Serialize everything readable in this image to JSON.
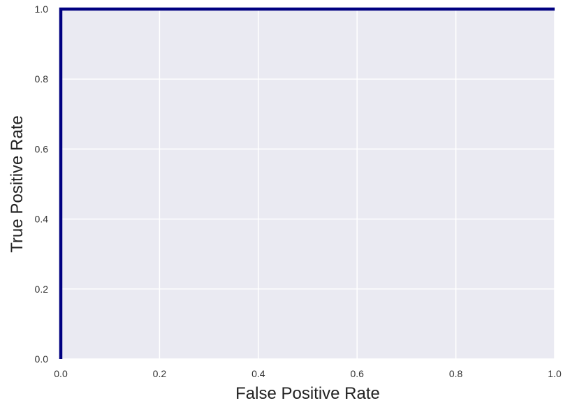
{
  "chart_data": {
    "type": "line",
    "title": "",
    "xlabel": "False Positive Rate",
    "ylabel": "True Positive Rate",
    "xlim": [
      0.0,
      1.0
    ],
    "ylim": [
      0.0,
      1.0
    ],
    "x_ticks": [
      0.0,
      0.2,
      0.4,
      0.6,
      0.8,
      1.0
    ],
    "y_ticks": [
      0.0,
      0.2,
      0.4,
      0.6,
      0.8,
      1.0
    ],
    "x_tick_labels": [
      "0.0",
      "0.2",
      "0.4",
      "0.6",
      "0.8",
      "1.0"
    ],
    "y_tick_labels": [
      "0.0",
      "0.2",
      "0.4",
      "0.6",
      "0.8",
      "1.0"
    ],
    "grid": true,
    "legend": "none",
    "colors": {
      "plot_background": "#EAEAF2",
      "grid": "#FFFFFF",
      "roc_curve": "#000080",
      "diagonal": "#000080"
    },
    "series": [
      {
        "style": "solid",
        "x": [
          0.0,
          0.0,
          1.0
        ],
        "y": [
          0.0,
          1.0,
          1.0
        ]
      },
      {
        "style": "dashed",
        "x": [
          0.0,
          0.0
        ],
        "y": [
          0.0,
          1.0
        ]
      }
    ]
  }
}
